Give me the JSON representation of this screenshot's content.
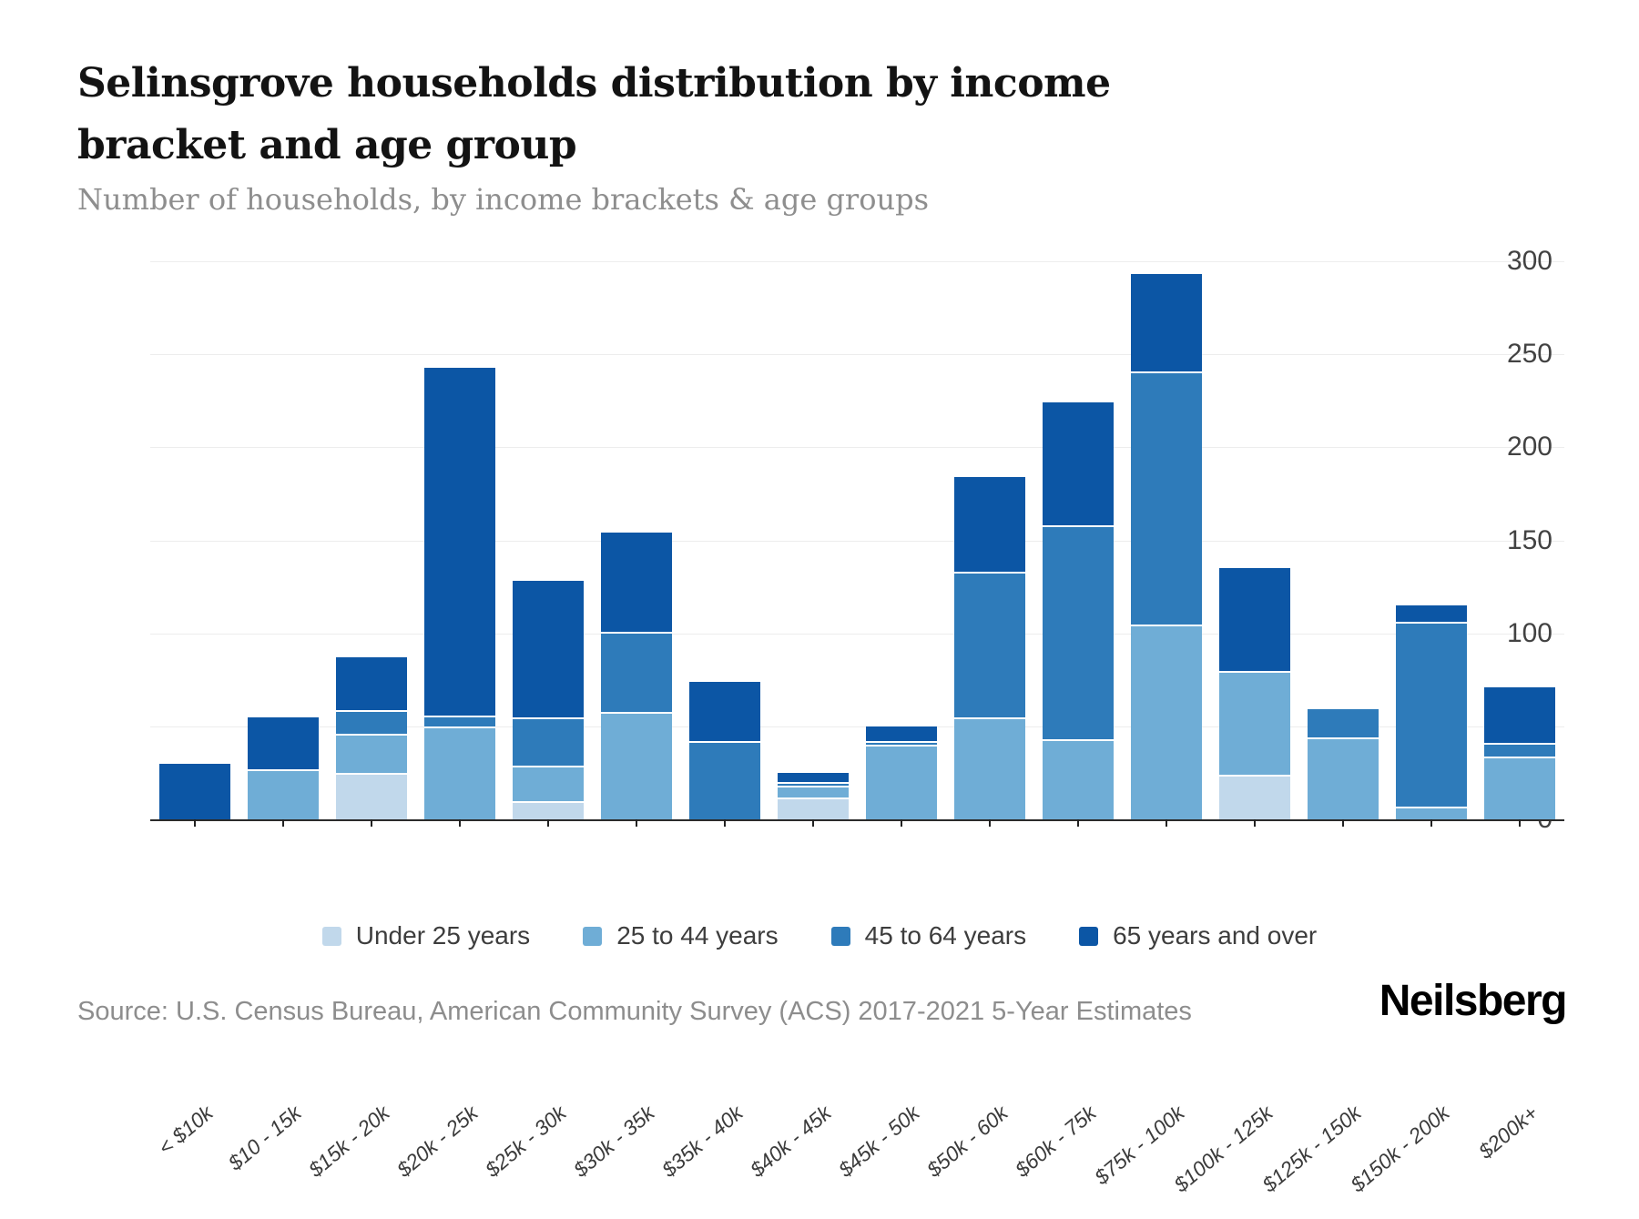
{
  "header": {
    "title": "Selinsgrove households distribution by income bracket and age group",
    "subtitle": "Number of households, by income brackets & age groups"
  },
  "footer": {
    "source": "Source: U.S. Census Bureau, American Community Survey (ACS) 2017-2021 5-Year Estimates",
    "brand": "Neilsberg"
  },
  "colors": {
    "under_25": "#c1d8eb",
    "age_25_44": "#6fadd6",
    "age_45_64": "#2e7bba",
    "age_65_over": "#0c56a5",
    "gridline": "#ededed",
    "axis": "#2b2b2b"
  },
  "chart_data": {
    "type": "bar",
    "stacked": true,
    "grid": true,
    "legend_position": "bottom",
    "title": "Selinsgrove households distribution by income bracket and age group",
    "subtitle": "Number of households, by income brackets & age groups",
    "xlabel": "",
    "ylabel": "Number of households",
    "ylim": [
      0,
      300
    ],
    "yticks": [
      0,
      50,
      100,
      150,
      200,
      250,
      300
    ],
    "categories": [
      "< $10k",
      "$10 - 15k",
      "$15k - 20k",
      "$20k - 25k",
      "$25k - 30k",
      "$30k - 35k",
      "$35k - 40k",
      "$40k - 45k",
      "$45k - 50k",
      "$50k - 60k",
      "$60k - 75k",
      "$75k - 100k",
      "$100k - 125k",
      "$125k - 150k",
      "$150k - 200k",
      "$200k+"
    ],
    "series": [
      {
        "name": "Under 25 years",
        "color": "#c1d8eb",
        "values": [
          0,
          0,
          24,
          0,
          9,
          0,
          0,
          11,
          0,
          0,
          0,
          0,
          23,
          0,
          0,
          0
        ]
      },
      {
        "name": "25 to 44 years",
        "color": "#6fadd6",
        "values": [
          0,
          26,
          21,
          49,
          19,
          57,
          0,
          6,
          39,
          54,
          42,
          104,
          56,
          43,
          6,
          33
        ]
      },
      {
        "name": "45 to 64 years",
        "color": "#2e7bba",
        "values": [
          0,
          0,
          13,
          6,
          26,
          43,
          41,
          2,
          2,
          78,
          115,
          136,
          0,
          16,
          99,
          7
        ]
      },
      {
        "name": "65 years and over",
        "color": "#0c56a5",
        "values": [
          30,
          29,
          29,
          188,
          74,
          54,
          33,
          6,
          9,
          52,
          67,
          53,
          56,
          0,
          10,
          31
        ]
      }
    ],
    "totals": [
      30,
      55,
      87,
      243,
      128,
      154,
      74,
      25,
      50,
      184,
      224,
      293,
      135,
      59,
      115,
      71
    ]
  }
}
